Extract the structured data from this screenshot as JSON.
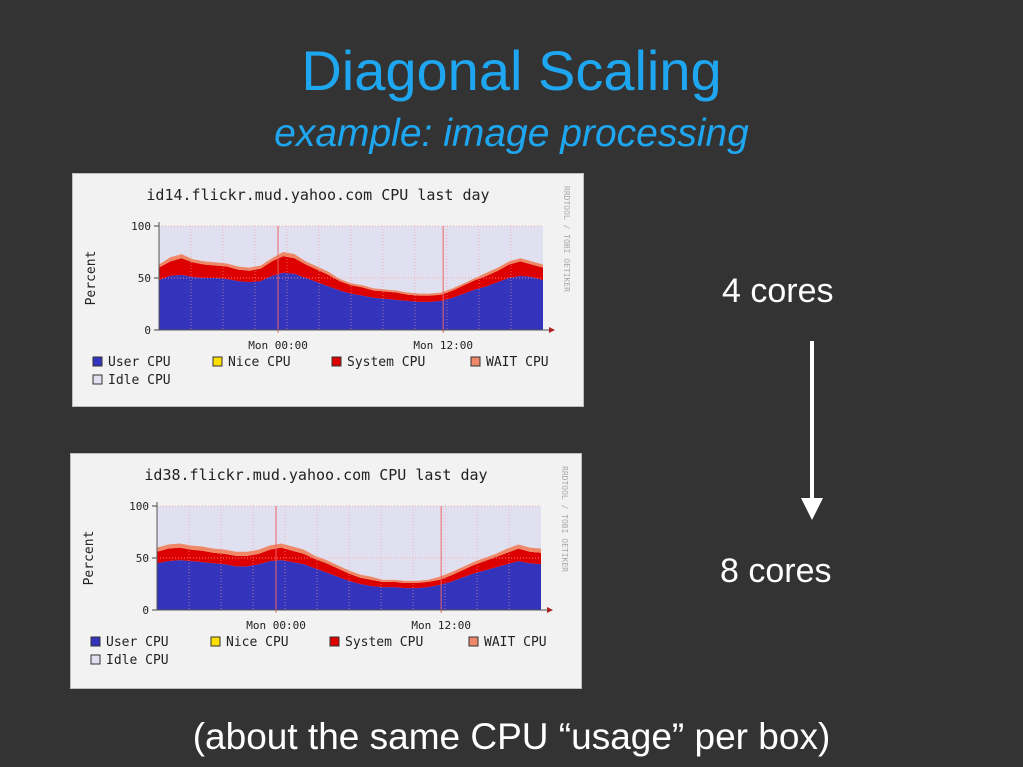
{
  "slide": {
    "title": "Diagonal Scaling",
    "subtitle": "example: image processing",
    "cores_top": "4 cores",
    "cores_bottom": "8 cores",
    "footer": "(about the same CPU “usage” per box)"
  },
  "colors": {
    "background": "#333333",
    "title": "#1ea7f0",
    "user_cpu": "#3333bb",
    "nice_cpu": "#ffdd00",
    "system_cpu": "#dd0000",
    "wait_cpu": "#ee8866",
    "idle_cpu": "#e0e0f0"
  },
  "chart_data": [
    {
      "type": "area",
      "title": "id14.flickr.mud.yahoo.com CPU last day",
      "ylabel": "Percent",
      "ylim": [
        0,
        100
      ],
      "yticks": [
        "0",
        "50",
        "100"
      ],
      "xticks": [
        "Mon 00:00",
        "Mon 12:00"
      ],
      "watermark": "RRDTOOL / TOBI OETIKER",
      "stacked": true,
      "legend": [
        "User CPU",
        "Nice CPU",
        "System CPU",
        "WAIT CPU",
        "Idle CPU"
      ],
      "grid": true,
      "series": [
        {
          "name": "User CPU",
          "values": [
            48,
            52,
            53,
            51,
            50,
            50,
            49,
            47,
            46,
            47,
            52,
            55,
            54,
            50,
            46,
            42,
            38,
            35,
            33,
            31,
            30,
            29,
            28,
            27,
            27,
            28,
            31,
            35,
            39,
            42,
            46,
            50,
            52,
            51,
            48
          ]
        },
        {
          "name": "Nice CPU",
          "values": [
            0,
            0,
            0,
            0,
            0,
            0,
            0,
            0,
            0,
            0,
            0,
            0,
            0,
            0,
            0,
            0,
            0,
            0,
            0,
            0,
            0,
            0,
            0,
            0,
            0,
            0,
            0,
            0,
            0,
            0,
            0,
            0,
            0,
            0,
            0
          ]
        },
        {
          "name": "System CPU",
          "values": [
            12,
            14,
            16,
            14,
            13,
            12,
            12,
            11,
            11,
            12,
            14,
            16,
            15,
            13,
            12,
            11,
            9,
            8,
            8,
            7,
            7,
            7,
            6,
            6,
            6,
            6,
            7,
            8,
            9,
            10,
            11,
            13,
            14,
            12,
            12
          ]
        },
        {
          "name": "WAIT CPU",
          "values": [
            3,
            4,
            4,
            3,
            3,
            3,
            3,
            3,
            3,
            3,
            3,
            4,
            4,
            3,
            3,
            3,
            2,
            2,
            2,
            2,
            2,
            2,
            2,
            2,
            2,
            2,
            2,
            2,
            2,
            3,
            3,
            3,
            3,
            3,
            3
          ]
        }
      ]
    },
    {
      "type": "area",
      "title": "id38.flickr.mud.yahoo.com CPU last day",
      "ylabel": "Percent",
      "ylim": [
        0,
        100
      ],
      "yticks": [
        "0",
        "50",
        "100"
      ],
      "xticks": [
        "Mon 00:00",
        "Mon 12:00"
      ],
      "watermark": "RRDTOOL / TOBI OETIKER",
      "stacked": true,
      "legend": [
        "User CPU",
        "Nice CPU",
        "System CPU",
        "WAIT CPU",
        "Idle CPU"
      ],
      "grid": true,
      "series": [
        {
          "name": "User CPU",
          "values": [
            45,
            47,
            48,
            47,
            46,
            45,
            44,
            42,
            42,
            44,
            47,
            48,
            46,
            44,
            40,
            36,
            32,
            28,
            25,
            23,
            22,
            22,
            21,
            21,
            22,
            24,
            27,
            31,
            35,
            38,
            41,
            44,
            47,
            45,
            44
          ]
        },
        {
          "name": "Nice CPU",
          "values": [
            0,
            0,
            0,
            0,
            0,
            0,
            0,
            0,
            0,
            0,
            0,
            0,
            0,
            0,
            0,
            0,
            0,
            0,
            0,
            0,
            0,
            0,
            0,
            0,
            0,
            0,
            0,
            0,
            0,
            0,
            0,
            0,
            0,
            0,
            0
          ]
        },
        {
          "name": "System CPU",
          "values": [
            11,
            12,
            12,
            11,
            11,
            10,
            10,
            10,
            10,
            10,
            11,
            12,
            11,
            10,
            9,
            9,
            8,
            7,
            6,
            6,
            5,
            5,
            5,
            5,
            5,
            5,
            6,
            7,
            8,
            9,
            10,
            11,
            12,
            11,
            11
          ]
        },
        {
          "name": "WAIT CPU",
          "values": [
            4,
            4,
            4,
            4,
            4,
            4,
            4,
            4,
            4,
            4,
            4,
            4,
            4,
            4,
            3,
            3,
            3,
            3,
            3,
            3,
            2,
            2,
            2,
            2,
            2,
            3,
            3,
            3,
            3,
            3,
            3,
            4,
            4,
            4,
            4
          ]
        }
      ]
    }
  ]
}
